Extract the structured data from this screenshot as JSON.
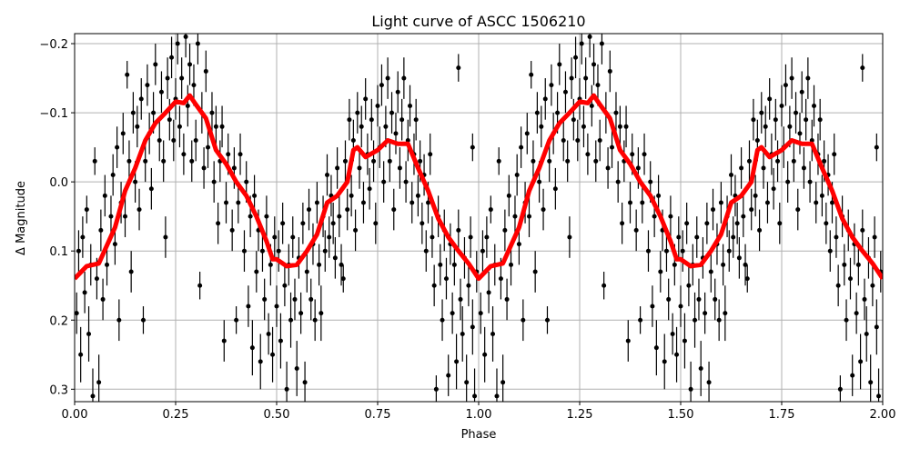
{
  "chart_data": {
    "type": "scatter",
    "title": "Light curve of ASCC 1506210",
    "xlabel": "Phase",
    "ylabel": "Δ Magnitude",
    "xlim": [
      0,
      2
    ],
    "ylim": [
      0.318,
      -0.2145
    ],
    "y_inverted": true,
    "grid": true,
    "x_ticks": [
      "0.00",
      "0.25",
      "0.50",
      "0.75",
      "1.00",
      "1.25",
      "1.50",
      "1.75",
      "2.00"
    ],
    "x_tick_values": [
      0,
      0.25,
      0.5,
      0.75,
      1.0,
      1.25,
      1.5,
      1.75,
      2.0
    ],
    "y_ticks": [
      "−0.2",
      "−0.1",
      "0.0",
      "0.1",
      "0.2",
      "0.3"
    ],
    "y_tick_values": [
      -0.2,
      -0.1,
      0.0,
      0.1,
      0.2,
      0.3
    ],
    "colors": {
      "points": "#000000",
      "model": "#ff0000",
      "grid": "#b0b0b0"
    },
    "phase_repeat": true,
    "points_phase_mag_err": [
      [
        0.005,
        0.19,
        0.03
      ],
      [
        0.01,
        0.1,
        0.03
      ],
      [
        0.015,
        0.25,
        0.04
      ],
      [
        0.02,
        0.08,
        0.03
      ],
      [
        0.025,
        0.16,
        0.03
      ],
      [
        0.03,
        0.04,
        0.02
      ],
      [
        0.035,
        0.22,
        0.04
      ],
      [
        0.04,
        0.12,
        0.03
      ],
      [
        0.045,
        0.31,
        0.04
      ],
      [
        0.05,
        -0.03,
        0.02
      ],
      [
        0.055,
        0.14,
        0.03
      ],
      [
        0.06,
        0.29,
        0.04
      ],
      [
        0.065,
        0.07,
        0.03
      ],
      [
        0.07,
        0.17,
        0.03
      ],
      [
        0.075,
        0.02,
        0.03
      ],
      [
        0.08,
        0.12,
        0.03
      ],
      [
        0.09,
        0.05,
        0.03
      ],
      [
        0.095,
        -0.01,
        0.03
      ],
      [
        0.1,
        0.09,
        0.03
      ],
      [
        0.105,
        -0.05,
        0.03
      ],
      [
        0.11,
        0.2,
        0.03
      ],
      [
        0.115,
        0.03,
        0.03
      ],
      [
        0.12,
        -0.07,
        0.03
      ],
      [
        0.125,
        0.05,
        0.03
      ],
      [
        0.13,
        -0.155,
        0.02
      ],
      [
        0.135,
        -0.03,
        0.03
      ],
      [
        0.14,
        0.13,
        0.03
      ],
      [
        0.145,
        -0.1,
        0.03
      ],
      [
        0.15,
        0.0,
        0.03
      ],
      [
        0.155,
        -0.08,
        0.03
      ],
      [
        0.16,
        0.04,
        0.03
      ],
      [
        0.165,
        -0.12,
        0.03
      ],
      [
        0.17,
        0.2,
        0.02
      ],
      [
        0.175,
        -0.03,
        0.03
      ],
      [
        0.18,
        -0.14,
        0.03
      ],
      [
        0.185,
        -0.07,
        0.03
      ],
      [
        0.19,
        0.01,
        0.03
      ],
      [
        0.195,
        -0.1,
        0.03
      ],
      [
        0.2,
        -0.17,
        0.03
      ],
      [
        0.21,
        -0.06,
        0.03
      ],
      [
        0.215,
        -0.13,
        0.03
      ],
      [
        0.22,
        -0.03,
        0.03
      ],
      [
        0.225,
        0.08,
        0.03
      ],
      [
        0.23,
        -0.15,
        0.03
      ],
      [
        0.235,
        -0.09,
        0.03
      ],
      [
        0.24,
        -0.18,
        0.03
      ],
      [
        0.245,
        -0.06,
        0.03
      ],
      [
        0.25,
        -0.12,
        0.03
      ],
      [
        0.255,
        -0.2,
        0.03
      ],
      [
        0.26,
        -0.08,
        0.03
      ],
      [
        0.265,
        -0.15,
        0.03
      ],
      [
        0.27,
        -0.04,
        0.03
      ],
      [
        0.275,
        -0.21,
        0.03
      ],
      [
        0.28,
        -0.11,
        0.03
      ],
      [
        0.285,
        -0.17,
        0.03
      ],
      [
        0.29,
        -0.03,
        0.03
      ],
      [
        0.295,
        -0.14,
        0.03
      ],
      [
        0.3,
        -0.06,
        0.03
      ],
      [
        0.305,
        -0.2,
        0.03
      ],
      [
        0.31,
        0.15,
        0.02
      ],
      [
        0.315,
        -0.1,
        0.03
      ],
      [
        0.32,
        -0.02,
        0.03
      ],
      [
        0.325,
        -0.16,
        0.03
      ],
      [
        0.33,
        -0.05,
        0.03
      ],
      [
        0.34,
        -0.1,
        0.03
      ],
      [
        0.345,
        0.0,
        0.03
      ],
      [
        0.35,
        -0.08,
        0.03
      ],
      [
        0.355,
        0.06,
        0.03
      ],
      [
        0.36,
        -0.03,
        0.03
      ],
      [
        0.365,
        -0.08,
        0.03
      ],
      [
        0.37,
        0.23,
        0.03
      ],
      [
        0.375,
        0.03,
        0.03
      ],
      [
        0.38,
        -0.04,
        0.03
      ],
      [
        0.39,
        0.07,
        0.03
      ],
      [
        0.395,
        -0.02,
        0.03
      ],
      [
        0.4,
        0.2,
        0.02
      ],
      [
        0.405,
        0.03,
        0.03
      ],
      [
        0.41,
        -0.04,
        0.03
      ],
      [
        0.42,
        0.1,
        0.03
      ],
      [
        0.425,
        0.0,
        0.03
      ],
      [
        0.43,
        0.18,
        0.03
      ],
      [
        0.435,
        0.05,
        0.03
      ],
      [
        0.44,
        0.24,
        0.04
      ],
      [
        0.445,
        0.02,
        0.03
      ],
      [
        0.45,
        0.13,
        0.03
      ],
      [
        0.455,
        0.07,
        0.03
      ],
      [
        0.46,
        0.26,
        0.04
      ],
      [
        0.465,
        0.1,
        0.03
      ],
      [
        0.47,
        0.17,
        0.03
      ],
      [
        0.475,
        0.05,
        0.03
      ],
      [
        0.48,
        0.22,
        0.03
      ],
      [
        0.485,
        0.12,
        0.03
      ],
      [
        0.49,
        0.25,
        0.04
      ],
      [
        0.495,
        0.08,
        0.03
      ],
      [
        0.5,
        0.18,
        0.03
      ],
      [
        0.505,
        0.1,
        0.03
      ],
      [
        0.51,
        0.23,
        0.04
      ],
      [
        0.515,
        0.06,
        0.03
      ],
      [
        0.52,
        0.15,
        0.03
      ],
      [
        0.525,
        0.3,
        0.04
      ],
      [
        0.53,
        0.12,
        0.03
      ],
      [
        0.535,
        0.2,
        0.04
      ],
      [
        0.54,
        0.08,
        0.03
      ],
      [
        0.545,
        0.17,
        0.03
      ],
      [
        0.55,
        0.27,
        0.04
      ],
      [
        0.555,
        0.11,
        0.03
      ],
      [
        0.56,
        0.19,
        0.03
      ],
      [
        0.565,
        0.06,
        0.03
      ],
      [
        0.57,
        0.29,
        0.03
      ],
      [
        0.575,
        0.13,
        0.03
      ],
      [
        0.58,
        0.04,
        0.03
      ],
      [
        0.585,
        0.17,
        0.03
      ],
      [
        0.59,
        0.09,
        0.03
      ],
      [
        0.595,
        0.2,
        0.03
      ],
      [
        0.6,
        0.03,
        0.03
      ],
      [
        0.605,
        0.12,
        0.03
      ],
      [
        0.61,
        0.19,
        0.04
      ],
      [
        0.615,
        0.05,
        0.03
      ],
      [
        0.62,
        0.1,
        0.03
      ],
      [
        0.625,
        -0.01,
        0.03
      ],
      [
        0.63,
        0.08,
        0.03
      ],
      [
        0.635,
        0.02,
        0.03
      ],
      [
        0.64,
        0.06,
        0.03
      ],
      [
        0.645,
        0.11,
        0.03
      ],
      [
        0.65,
        -0.02,
        0.03
      ],
      [
        0.655,
        0.05,
        0.03
      ],
      [
        0.66,
        0.12,
        0.03
      ],
      [
        0.665,
        0.14,
        0.02
      ],
      [
        0.67,
        -0.03,
        0.03
      ],
      [
        0.675,
        0.04,
        0.03
      ],
      [
        0.68,
        -0.09,
        0.03
      ],
      [
        0.685,
        0.02,
        0.03
      ],
      [
        0.69,
        -0.06,
        0.03
      ],
      [
        0.695,
        0.07,
        0.03
      ],
      [
        0.7,
        -0.1,
        0.03
      ],
      [
        0.705,
        -0.02,
        0.03
      ],
      [
        0.71,
        -0.08,
        0.03
      ],
      [
        0.715,
        0.03,
        0.03
      ],
      [
        0.72,
        -0.12,
        0.03
      ],
      [
        0.725,
        -0.04,
        0.03
      ],
      [
        0.73,
        0.01,
        0.03
      ],
      [
        0.735,
        -0.09,
        0.03
      ],
      [
        0.74,
        -0.03,
        0.03
      ],
      [
        0.745,
        0.06,
        0.03
      ],
      [
        0.75,
        -0.11,
        0.03
      ],
      [
        0.755,
        -0.05,
        0.03
      ],
      [
        0.76,
        -0.14,
        0.03
      ],
      [
        0.765,
        0.0,
        0.03
      ],
      [
        0.77,
        -0.08,
        0.03
      ],
      [
        0.775,
        -0.15,
        0.03
      ],
      [
        0.78,
        -0.03,
        0.03
      ],
      [
        0.785,
        -0.1,
        0.03
      ],
      [
        0.79,
        0.04,
        0.03
      ],
      [
        0.795,
        -0.07,
        0.03
      ],
      [
        0.8,
        -0.13,
        0.03
      ],
      [
        0.805,
        -0.02,
        0.03
      ],
      [
        0.81,
        -0.09,
        0.03
      ],
      [
        0.815,
        -0.15,
        0.03
      ],
      [
        0.82,
        0.0,
        0.03
      ],
      [
        0.825,
        -0.06,
        0.03
      ],
      [
        0.83,
        -0.11,
        0.03
      ],
      [
        0.835,
        0.03,
        0.03
      ],
      [
        0.84,
        -0.04,
        0.03
      ],
      [
        0.845,
        -0.09,
        0.03
      ],
      [
        0.85,
        0.02,
        0.03
      ],
      [
        0.855,
        -0.03,
        0.03
      ],
      [
        0.86,
        0.06,
        0.03
      ],
      [
        0.865,
        -0.01,
        0.03
      ],
      [
        0.87,
        0.1,
        0.03
      ],
      [
        0.875,
        0.03,
        0.03
      ],
      [
        0.88,
        -0.04,
        0.03
      ],
      [
        0.885,
        0.08,
        0.03
      ],
      [
        0.89,
        0.15,
        0.03
      ],
      [
        0.895,
        0.3,
        0.02
      ],
      [
        0.9,
        0.05,
        0.03
      ],
      [
        0.905,
        0.12,
        0.03
      ],
      [
        0.91,
        0.2,
        0.03
      ],
      [
        0.915,
        0.07,
        0.03
      ],
      [
        0.92,
        0.14,
        0.03
      ],
      [
        0.925,
        0.28,
        0.03
      ],
      [
        0.93,
        0.09,
        0.03
      ],
      [
        0.935,
        0.19,
        0.03
      ],
      [
        0.94,
        0.12,
        0.03
      ],
      [
        0.945,
        0.26,
        0.04
      ],
      [
        0.95,
        0.07,
        0.03
      ],
      [
        0.955,
        0.17,
        0.03
      ],
      [
        0.96,
        0.22,
        0.04
      ],
      [
        0.965,
        0.11,
        0.03
      ],
      [
        0.97,
        0.29,
        0.04
      ],
      [
        0.975,
        0.15,
        0.03
      ],
      [
        0.98,
        0.08,
        0.03
      ],
      [
        0.985,
        0.21,
        0.04
      ],
      [
        0.99,
        0.31,
        0.04
      ],
      [
        0.995,
        0.13,
        0.03
      ],
      [
        0.95,
        -0.165,
        0.02
      ],
      [
        0.985,
        -0.05,
        0.02
      ]
    ],
    "model_phase_mag": [
      [
        0,
        0.14
      ],
      [
        0.03,
        0.122
      ],
      [
        0.06,
        0.118
      ],
      [
        0.1,
        0.066
      ],
      [
        0.125,
        0.013
      ],
      [
        0.15,
        -0.02
      ],
      [
        0.175,
        -0.06
      ],
      [
        0.2,
        -0.085
      ],
      [
        0.225,
        -0.1
      ],
      [
        0.25,
        -0.116
      ],
      [
        0.27,
        -0.114
      ],
      [
        0.285,
        -0.125
      ],
      [
        0.3,
        -0.112
      ],
      [
        0.325,
        -0.092
      ],
      [
        0.35,
        -0.046
      ],
      [
        0.375,
        -0.026
      ],
      [
        0.4,
        0
      ],
      [
        0.425,
        0.02
      ],
      [
        0.45,
        0.05
      ],
      [
        0.475,
        0.086
      ],
      [
        0.49,
        0.112
      ],
      [
        0.5,
        0.112
      ],
      [
        0.525,
        0.122
      ],
      [
        0.55,
        0.12
      ],
      [
        0.575,
        0.1
      ],
      [
        0.6,
        0.076
      ],
      [
        0.625,
        0.03
      ],
      [
        0.65,
        0.02
      ],
      [
        0.675,
        0
      ],
      [
        0.69,
        -0.046
      ],
      [
        0.7,
        -0.05
      ],
      [
        0.72,
        -0.036
      ],
      [
        0.75,
        -0.046
      ],
      [
        0.775,
        -0.06
      ],
      [
        0.8,
        -0.055
      ],
      [
        0.825,
        -0.055
      ],
      [
        0.85,
        -0.02
      ],
      [
        0.875,
        0.013
      ],
      [
        0.9,
        0.053
      ],
      [
        0.925,
        0.08
      ],
      [
        0.95,
        0.1
      ],
      [
        0.975,
        0.118
      ],
      [
        1.0,
        0.14
      ]
    ]
  }
}
